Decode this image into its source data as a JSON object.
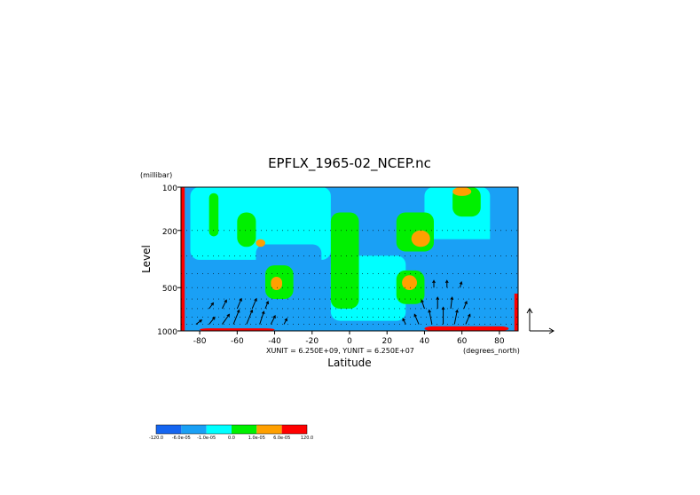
{
  "chart_data": {
    "type": "heatmap",
    "title": "EPFLX_1965-02_NCEP.nc",
    "xlabel": "Latitude",
    "ylabel": "Level",
    "y_unit": "(millibar)",
    "x_unit": "(degrees_north)",
    "vector_scale_text": "XUNIT = 6.250E+09, YUNIT = 6.250E+07",
    "xlim": [
      -90,
      90
    ],
    "ylim": [
      1000,
      100
    ],
    "y_scale": "log",
    "x_ticks": [
      -80,
      -60,
      -40,
      -20,
      0,
      20,
      40,
      60,
      80
    ],
    "y_ticks": [
      100,
      200,
      500,
      1000
    ],
    "grid": "dotted horizontal pressure levels",
    "colorbar": {
      "boundaries": [
        "-120.0",
        "-6.0e-05",
        "-1.0e-05",
        "0.0",
        "1.0e-05",
        "6.0e-05",
        "120.0"
      ],
      "colors": [
        "#1565f0",
        "#1aa0f5",
        "#00ffff",
        "#00f000",
        "#ffa000",
        "#ff0000"
      ]
    },
    "field_regions": [
      {
        "value_class": "0.0 to 1.0e-05",
        "lat": [
          -10,
          5
        ],
        "p": [
          150,
          700
        ]
      },
      {
        "value_class": "0.0 to 1.0e-05",
        "lat": [
          -75,
          -70
        ],
        "p": [
          110,
          220
        ]
      },
      {
        "value_class": "0.0 to 1.0e-05",
        "lat": [
          -60,
          -50
        ],
        "p": [
          150,
          260
        ]
      },
      {
        "value_class": "0.0 to 1.0e-05",
        "lat": [
          -45,
          -30
        ],
        "p": [
          350,
          600
        ]
      },
      {
        "value_class": "0.0 to 1.0e-05",
        "lat": [
          25,
          45
        ],
        "p": [
          150,
          280
        ]
      },
      {
        "value_class": "0.0 to 1.0e-05",
        "lat": [
          25,
          40
        ],
        "p": [
          380,
          650
        ]
      },
      {
        "value_class": "0.0 to 1.0e-05",
        "lat": [
          55,
          70
        ],
        "p": [
          100,
          160
        ]
      },
      {
        "value_class": "1.0e-05 to 6.0e-05",
        "lat": [
          -50,
          -45
        ],
        "p": [
          230,
          260
        ]
      },
      {
        "value_class": "1.0e-05 to 6.0e-05",
        "lat": [
          -42,
          -36
        ],
        "p": [
          420,
          520
        ]
      },
      {
        "value_class": "1.0e-05 to 6.0e-05",
        "lat": [
          33,
          43
        ],
        "p": [
          200,
          260
        ]
      },
      {
        "value_class": "1.0e-05 to 6.0e-05",
        "lat": [
          28,
          36
        ],
        "p": [
          410,
          520
        ]
      },
      {
        "value_class": "1.0e-05 to 6.0e-05",
        "lat": [
          55,
          65
        ],
        "p": [
          100,
          115
        ]
      },
      {
        "value_class": "-1.0e-05 to 0.0",
        "lat": [
          -85,
          -10
        ],
        "p": [
          100,
          320
        ]
      },
      {
        "value_class": "-1.0e-05 to 0.0",
        "lat": [
          -10,
          30
        ],
        "p": [
          300,
          850
        ]
      },
      {
        "value_class": "-1.0e-05 to 0.0",
        "lat": [
          40,
          75
        ],
        "p": [
          100,
          260
        ]
      },
      {
        "value_class": "-6.0e-05 to -1.0e-05",
        "lat": [
          -85,
          -50
        ],
        "p": [
          450,
          1000
        ]
      },
      {
        "value_class": "-6.0e-05 to -1.0e-05",
        "lat": [
          -50,
          -15
        ],
        "p": [
          250,
          1000
        ]
      },
      {
        "value_class": "-6.0e-05 to -1.0e-05",
        "lat": [
          40,
          88
        ],
        "p": [
          230,
          1000
        ]
      },
      {
        "value_class": "60.0 to 120.0 (edge)",
        "lat": [
          -90,
          -88
        ],
        "p": [
          100,
          1000
        ]
      },
      {
        "value_class": "60.0 to 120.0 (edge)",
        "lat": [
          88,
          90
        ],
        "p": [
          550,
          1000
        ]
      },
      {
        "value_class": "60.0 to 120.0",
        "lat": [
          -80,
          -40
        ],
        "p": [
          960,
          1000
        ]
      },
      {
        "value_class": "60.0 to 120.0",
        "lat": [
          40,
          85
        ],
        "p": [
          930,
          1000
        ]
      }
    ],
    "vectors": [
      {
        "lat": -82,
        "p": 900,
        "u": 0.4,
        "v": 0.3
      },
      {
        "lat": -75,
        "p": 900,
        "u": 0.4,
        "v": 0.5
      },
      {
        "lat": -68,
        "p": 900,
        "u": 0.5,
        "v": 0.7
      },
      {
        "lat": -62,
        "p": 900,
        "u": 0.4,
        "v": 1.0
      },
      {
        "lat": -55,
        "p": 900,
        "u": 0.4,
        "v": 1.0
      },
      {
        "lat": -48,
        "p": 900,
        "u": 0.3,
        "v": 0.9
      },
      {
        "lat": -42,
        "p": 900,
        "u": 0.3,
        "v": 0.6
      },
      {
        "lat": -35,
        "p": 900,
        "u": 0.2,
        "v": 0.4
      },
      {
        "lat": -75,
        "p": 700,
        "u": 0.3,
        "v": 0.4
      },
      {
        "lat": -68,
        "p": 700,
        "u": 0.3,
        "v": 0.6
      },
      {
        "lat": -60,
        "p": 700,
        "u": 0.3,
        "v": 0.7
      },
      {
        "lat": -52,
        "p": 700,
        "u": 0.3,
        "v": 0.7
      },
      {
        "lat": -45,
        "p": 700,
        "u": 0.2,
        "v": 0.5
      },
      {
        "lat": 30,
        "p": 900,
        "u": -0.2,
        "v": 0.4
      },
      {
        "lat": 37,
        "p": 900,
        "u": -0.3,
        "v": 0.7
      },
      {
        "lat": 44,
        "p": 900,
        "u": -0.2,
        "v": 1.0
      },
      {
        "lat": 50,
        "p": 900,
        "u": 0.0,
        "v": 1.2
      },
      {
        "lat": 56,
        "p": 900,
        "u": 0.2,
        "v": 1.0
      },
      {
        "lat": 62,
        "p": 900,
        "u": 0.3,
        "v": 0.7
      },
      {
        "lat": 40,
        "p": 700,
        "u": -0.2,
        "v": 0.6
      },
      {
        "lat": 47,
        "p": 700,
        "u": 0.0,
        "v": 0.8
      },
      {
        "lat": 54,
        "p": 700,
        "u": 0.1,
        "v": 0.8
      },
      {
        "lat": 61,
        "p": 700,
        "u": 0.2,
        "v": 0.5
      },
      {
        "lat": 45,
        "p": 500,
        "u": 0.0,
        "v": 0.5
      },
      {
        "lat": 52,
        "p": 500,
        "u": 0.0,
        "v": 0.5
      },
      {
        "lat": 59,
        "p": 500,
        "u": 0.1,
        "v": 0.4
      }
    ]
  }
}
